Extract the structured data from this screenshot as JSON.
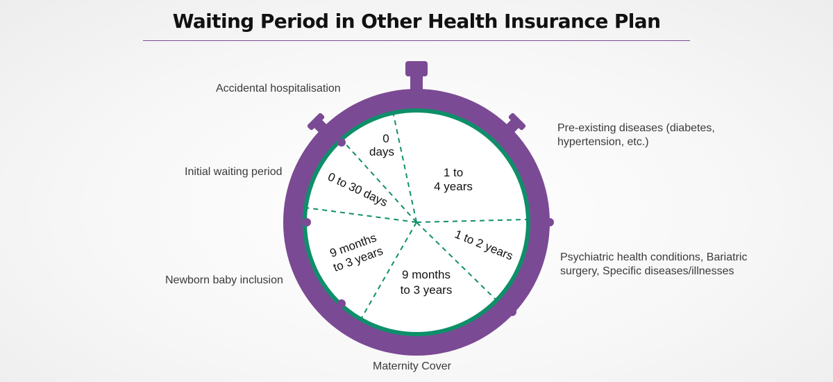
{
  "title": "Waiting Period in Other Health Insurance Plan",
  "colors": {
    "accent": "#7b4a94",
    "ring": "#0e8f6a",
    "face": "#ffffff"
  },
  "categories": {
    "accidental": "Accidental hospitalisation",
    "initial": "Initial waiting period",
    "newborn": "Newborn baby inclusion",
    "maternity": "Maternity Cover",
    "preexisting_1": "Pre-existing diseases (diabetes,",
    "preexisting_2": "hypertension, etc.)",
    "psychiatric_1": "Psychiatric health conditions, Bariatric",
    "psychiatric_2": "surgery, Specific diseases/illnesses"
  },
  "segments": {
    "accidental_1": "0",
    "accidental_2": "days",
    "preexisting_1": "1 to",
    "preexisting_2": "4 years",
    "initial": "0 to 30 days",
    "psychiatric": "1 to 2 years",
    "newborn_1": "9 months",
    "newborn_2": "to 3 years",
    "maternity_1": "9 months",
    "maternity_2": "to 3 years"
  }
}
